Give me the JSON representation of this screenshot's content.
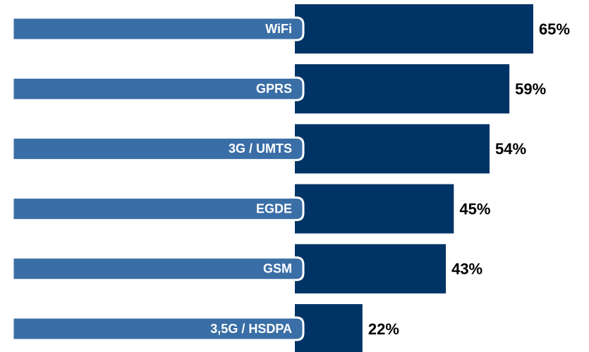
{
  "chart_data": {
    "type": "bar",
    "orientation": "horizontal",
    "categories": [
      "WiFi",
      "GPRS",
      "3G / UMTS",
      "EGDE",
      "GSM",
      "3,5G / HSDPA"
    ],
    "values": [
      65,
      59,
      54,
      45,
      43,
      22
    ],
    "value_labels": [
      "65%",
      "59%",
      "54%",
      "45%",
      "43%",
      "22%"
    ],
    "color": "#003466",
    "label_color": "#3a6ea6"
  }
}
